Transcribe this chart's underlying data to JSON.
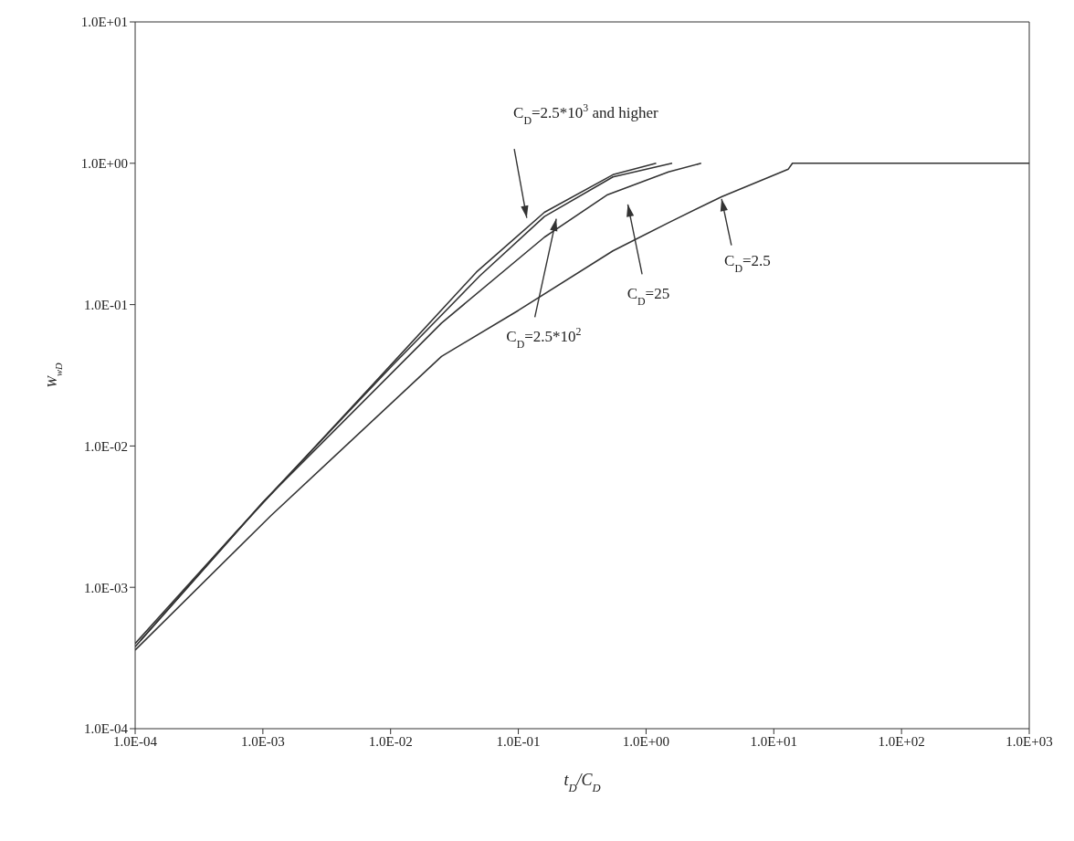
{
  "chart_data": {
    "type": "line",
    "xlabel": "t$_{D}$/C$_{D}$",
    "ylabel": "W$_{wD}$",
    "log": "xy",
    "marker": "none",
    "line_style": "solid",
    "xlim": [
      0.0001,
      1000
    ],
    "ylim": [
      0.0001,
      10
    ],
    "xticks": [
      {
        "value": 0.0001,
        "label": "1.0E-04"
      },
      {
        "value": 0.001,
        "label": "1.0E-03"
      },
      {
        "value": 0.01,
        "label": "1.0E-02"
      },
      {
        "value": 0.1,
        "label": "1.0E-01"
      },
      {
        "value": 1,
        "label": "1.0E+00"
      },
      {
        "value": 10,
        "label": "1.0E+01"
      },
      {
        "value": 100,
        "label": "1.0E+02"
      },
      {
        "value": 1000,
        "label": "1.0E+03"
      }
    ],
    "yticks": [
      {
        "value": 0.0001,
        "label": "1.0E-04"
      },
      {
        "value": 0.001,
        "label": "1.0E-03"
      },
      {
        "value": 0.01,
        "label": "1.0E-02"
      },
      {
        "value": 0.1,
        "label": "1.0E-01"
      },
      {
        "value": 1,
        "label": "1.0E+00"
      },
      {
        "value": 10,
        "label": "1.0E+01"
      }
    ],
    "series": [
      {
        "color": "#333333",
        "x": [
          0.0001,
          0.0006,
          0.0072,
          0.047,
          0.16,
          0.55,
          1.2
        ],
        "values": [
          0.0004,
          0.0024,
          0.027,
          0.17,
          0.45,
          0.83,
          1.0
        ]
      },
      {
        "color": "#333333",
        "x": [
          0.00011,
          0.001,
          0.01,
          0.05,
          0.16,
          0.55,
          1.6
        ],
        "values": [
          0.00042,
          0.004,
          0.036,
          0.16,
          0.42,
          0.8,
          1.0
        ]
      },
      {
        "color": "#333333",
        "x": [
          0.0001,
          0.001,
          0.025,
          0.16,
          0.5,
          1.5,
          2.7
        ],
        "values": [
          0.00038,
          0.004,
          0.074,
          0.3,
          0.6,
          0.87,
          1.0
        ]
      },
      {
        "color": "#333333",
        "x": [
          0.0001,
          0.00115,
          0.025,
          0.1,
          0.55,
          1.5,
          3.9,
          13,
          14,
          1000
        ],
        "values": [
          0.00036,
          0.0032,
          0.043,
          0.091,
          0.24,
          0.38,
          0.58,
          0.91,
          1.0,
          1.0
        ]
      }
    ],
    "annotations": [
      "C$_{D}$=2.5*10$^{3}$ and higher",
      "C$_{D}$=2.5*10$^{2}$",
      "C$_{D}$=25",
      {
        "text": "C$_{D}$=2.5",
        "x": 3.9,
        "y": 0.56
      }
    ]
  }
}
